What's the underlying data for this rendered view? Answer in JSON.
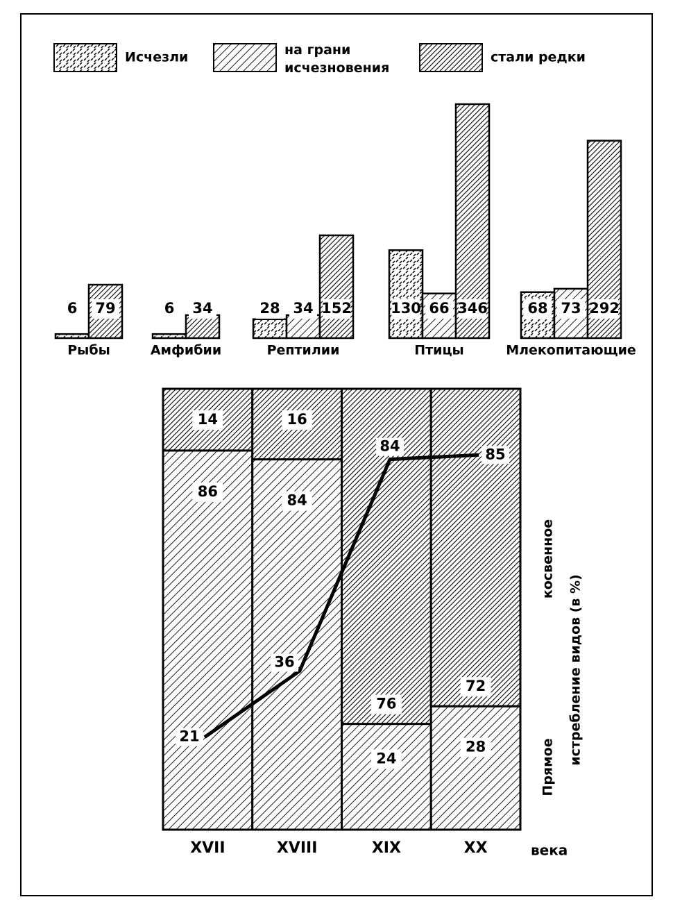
{
  "chart_data": [
    {
      "type": "bar",
      "categories": [
        "Рыбы",
        "Амфибии",
        "Рептилии",
        "Птицы",
        "Млекопитающие"
      ],
      "series": [
        {
          "name": "Исчезли",
          "color": "#000000",
          "pattern": "dashes",
          "values": [
            6,
            6,
            28,
            130,
            68
          ]
        },
        {
          "name": "на грани исчезновения",
          "color": "#000000",
          "pattern": "hatch",
          "values": [
            null,
            null,
            34,
            66,
            73
          ]
        },
        {
          "name": "стали редки",
          "color": "#000000",
          "pattern": "dense-hatch",
          "values": [
            79,
            34,
            152,
            346,
            292
          ]
        }
      ],
      "legend": "top"
    },
    {
      "type": "stacked-bar",
      "categories": [
        "XVII",
        "XVIII",
        "XIX",
        "XX"
      ],
      "x_label": "века",
      "y_label": "истребление видов (в %)",
      "ylim": [
        0,
        100
      ],
      "series": [
        {
          "name": "Прямое",
          "color": "#000000",
          "pattern": "hatch",
          "values": [
            86,
            84,
            24,
            28
          ]
        },
        {
          "name": "косвенное",
          "color": "#000000",
          "pattern": "dense-hatch",
          "values": [
            14,
            16,
            76,
            72
          ]
        }
      ],
      "line": {
        "color": "#000000",
        "values": [
          21,
          36,
          84,
          85
        ]
      }
    }
  ]
}
